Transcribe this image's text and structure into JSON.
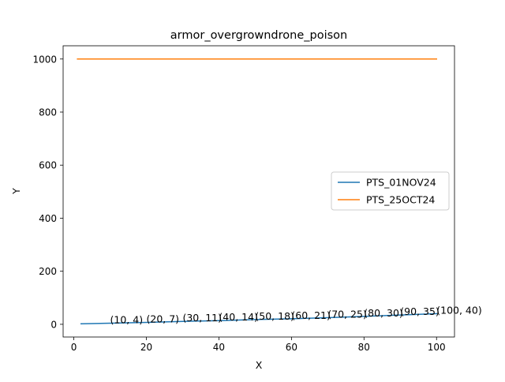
{
  "chart_data": {
    "type": "line",
    "title": "armor_overgrowndrone_poison",
    "xlabel": "X",
    "ylabel": "Y",
    "xlim": [
      -2.95,
      104.95
    ],
    "ylim": [
      -47.9,
      1049.9
    ],
    "xticks": [
      0,
      20,
      40,
      60,
      80,
      100
    ],
    "yticks": [
      0,
      200,
      400,
      600,
      800,
      1000
    ],
    "grid": false,
    "legend_position": "center-right",
    "series": [
      {
        "name": "PTS_01NOV24",
        "color": "#1f77b4",
        "x": [
          2,
          10,
          20,
          30,
          40,
          50,
          60,
          70,
          80,
          90,
          100
        ],
        "y": [
          2,
          4,
          7,
          11,
          14,
          18,
          21,
          25,
          30,
          35,
          40
        ]
      },
      {
        "name": "PTS_25OCT24",
        "color": "#ff7f0e",
        "x": [
          1,
          100
        ],
        "y": [
          1000,
          1000
        ]
      }
    ],
    "annotations": [
      {
        "text": "(10, 4)",
        "x": 10,
        "y": 4
      },
      {
        "text": "(20, 7)",
        "x": 20,
        "y": 7
      },
      {
        "text": "(30, 11)",
        "x": 30,
        "y": 11
      },
      {
        "text": "(40, 14)",
        "x": 40,
        "y": 14
      },
      {
        "text": "(50, 18)",
        "x": 50,
        "y": 18
      },
      {
        "text": "(60, 21)",
        "x": 60,
        "y": 21
      },
      {
        "text": "(70, 25)",
        "x": 70,
        "y": 25
      },
      {
        "text": "(80, 30)",
        "x": 80,
        "y": 30
      },
      {
        "text": "(90, 35)",
        "x": 90,
        "y": 35
      },
      {
        "text": "(100, 40)",
        "x": 100,
        "y": 40
      }
    ]
  }
}
